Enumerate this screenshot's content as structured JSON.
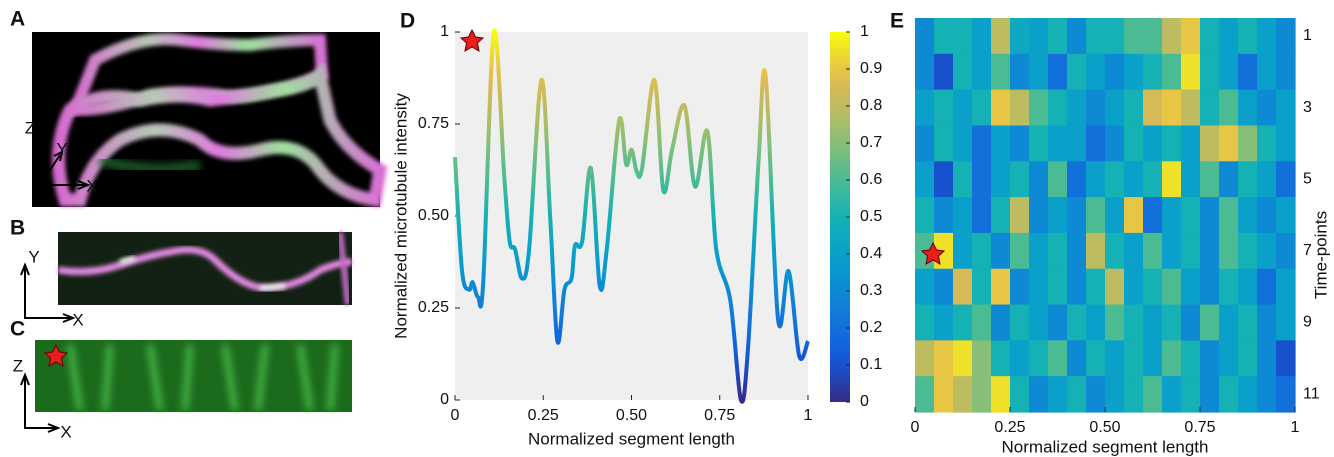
{
  "panels": [
    {
      "label": "A",
      "axis_labels": [
        "Z",
        "Y",
        "X"
      ]
    },
    {
      "label": "B",
      "axis_labels": [
        "Y",
        "X"
      ]
    },
    {
      "label": "C",
      "axis_labels": [
        "Z",
        "X"
      ]
    }
  ],
  "chart_data": [
    {
      "type": "line",
      "panel_label": "D",
      "colormap": "parula",
      "x_label": "Normalized segment length",
      "y_label": "Normalized microtubule intensity",
      "x": [
        0,
        0.02,
        0.04,
        0.05,
        0.065,
        0.08,
        0.11,
        0.14,
        0.155,
        0.17,
        0.19,
        0.21,
        0.245,
        0.27,
        0.29,
        0.31,
        0.33,
        0.34,
        0.36,
        0.385,
        0.41,
        0.43,
        0.465,
        0.485,
        0.5,
        0.515,
        0.53,
        0.565,
        0.59,
        0.615,
        0.65,
        0.68,
        0.715,
        0.74,
        0.78,
        0.81,
        0.83,
        0.86,
        0.88,
        0.915,
        0.945,
        0.975,
        1.0
      ],
      "values": [
        0.66,
        0.35,
        0.3,
        0.32,
        0.28,
        0.32,
        1.0,
        0.6,
        0.43,
        0.41,
        0.33,
        0.41,
        0.87,
        0.49,
        0.16,
        0.3,
        0.33,
        0.42,
        0.43,
        0.63,
        0.31,
        0.41,
        0.76,
        0.64,
        0.68,
        0.62,
        0.63,
        0.87,
        0.57,
        0.68,
        0.8,
        0.58,
        0.73,
        0.41,
        0.27,
        0.0,
        0.14,
        0.65,
        0.88,
        0.22,
        0.35,
        0.12,
        0.16
      ],
      "xlim": [
        0,
        1
      ],
      "ylim": [
        0,
        1
      ],
      "xticks": [
        0,
        0.25,
        {
          "value": 0.5,
          "label": "0.50"
        },
        0.75,
        1
      ],
      "yticks": [
        0,
        0.25,
        {
          "value": 0.5,
          "label": "0.50"
        },
        0.75,
        1
      ],
      "colorbar": {
        "lim": [
          0,
          1
        ],
        "ticks": [
          0,
          0.1,
          0.2,
          0.3,
          0.4,
          0.5,
          0.6,
          0.7,
          0.8,
          0.9,
          1
        ]
      }
    },
    {
      "type": "heatmap",
      "panel_label": "E",
      "colormap": "parula",
      "x_label": "Normalized segment length",
      "y_label": "Time-points",
      "xlim": [
        0,
        1
      ],
      "clim": [
        0,
        1
      ],
      "xticks": [
        0,
        0.25,
        {
          "value": 0.5,
          "label": "0.50"
        },
        0.75,
        1
      ],
      "categories": [
        "1",
        null,
        "3",
        null,
        "5",
        null,
        "7",
        null,
        "9",
        null,
        "11"
      ],
      "z": [
        [
          0.3,
          0.5,
          0.5,
          0.4,
          0.8,
          0.45,
          0.4,
          0.5,
          0.3,
          0.5,
          0.5,
          0.6,
          0.6,
          0.8,
          0.9,
          0.5,
          0.4,
          0.5,
          0.4,
          0.3
        ],
        [
          0.3,
          0.1,
          0.5,
          0.4,
          0.6,
          0.3,
          0.4,
          0.2,
          0.5,
          0.4,
          0.3,
          0.4,
          0.5,
          0.6,
          0.95,
          0.5,
          0.4,
          0.2,
          0.4,
          0.3
        ],
        [
          0.4,
          0.5,
          0.4,
          0.5,
          0.9,
          0.8,
          0.6,
          0.5,
          0.4,
          0.3,
          0.4,
          0.5,
          0.85,
          0.9,
          0.8,
          0.5,
          0.6,
          0.4,
          0.3,
          0.4
        ],
        [
          0.3,
          0.5,
          0.4,
          0.2,
          0.4,
          0.3,
          0.5,
          0.4,
          0.4,
          0.2,
          0.3,
          0.5,
          0.4,
          0.5,
          0.4,
          0.8,
          0.9,
          0.7,
          0.5,
          0.4
        ],
        [
          0.4,
          0.1,
          0.5,
          0.2,
          0.4,
          0.5,
          0.3,
          0.6,
          0.2,
          0.4,
          0.5,
          0.4,
          0.5,
          0.95,
          0.4,
          0.6,
          0.3,
          0.5,
          0.4,
          0.2
        ],
        [
          0.5,
          0.3,
          0.4,
          0.2,
          0.5,
          0.8,
          0.3,
          0.4,
          0.3,
          0.6,
          0.4,
          0.9,
          0.2,
          0.4,
          0.5,
          0.3,
          0.6,
          0.4,
          0.3,
          0.4
        ],
        [
          0.6,
          0.95,
          0.4,
          0.5,
          0.3,
          0.6,
          0.4,
          0.5,
          0.3,
          0.8,
          0.5,
          0.4,
          0.6,
          0.4,
          0.5,
          0.3,
          0.6,
          0.5,
          0.4,
          0.3
        ],
        [
          0.4,
          0.3,
          0.85,
          0.5,
          0.9,
          0.3,
          0.4,
          0.5,
          0.3,
          0.5,
          0.8,
          0.4,
          0.5,
          0.6,
          0.4,
          0.3,
          0.5,
          0.4,
          0.2,
          0.4
        ],
        [
          0.5,
          0.4,
          0.5,
          0.6,
          0.3,
          0.5,
          0.4,
          0.3,
          0.5,
          0.4,
          0.6,
          0.5,
          0.4,
          0.5,
          0.3,
          0.6,
          0.4,
          0.5,
          0.3,
          0.4
        ],
        [
          0.8,
          0.9,
          0.95,
          0.7,
          0.5,
          0.4,
          0.5,
          0.6,
          0.3,
          0.5,
          0.4,
          0.5,
          0.4,
          0.6,
          0.5,
          0.3,
          0.4,
          0.5,
          0.3,
          0.1
        ],
        [
          0.6,
          0.9,
          0.8,
          0.7,
          0.95,
          0.5,
          0.3,
          0.4,
          0.5,
          0.3,
          0.4,
          0.5,
          0.6,
          0.4,
          0.5,
          0.3,
          0.5,
          0.4,
          0.3,
          0.2
        ]
      ]
    }
  ]
}
